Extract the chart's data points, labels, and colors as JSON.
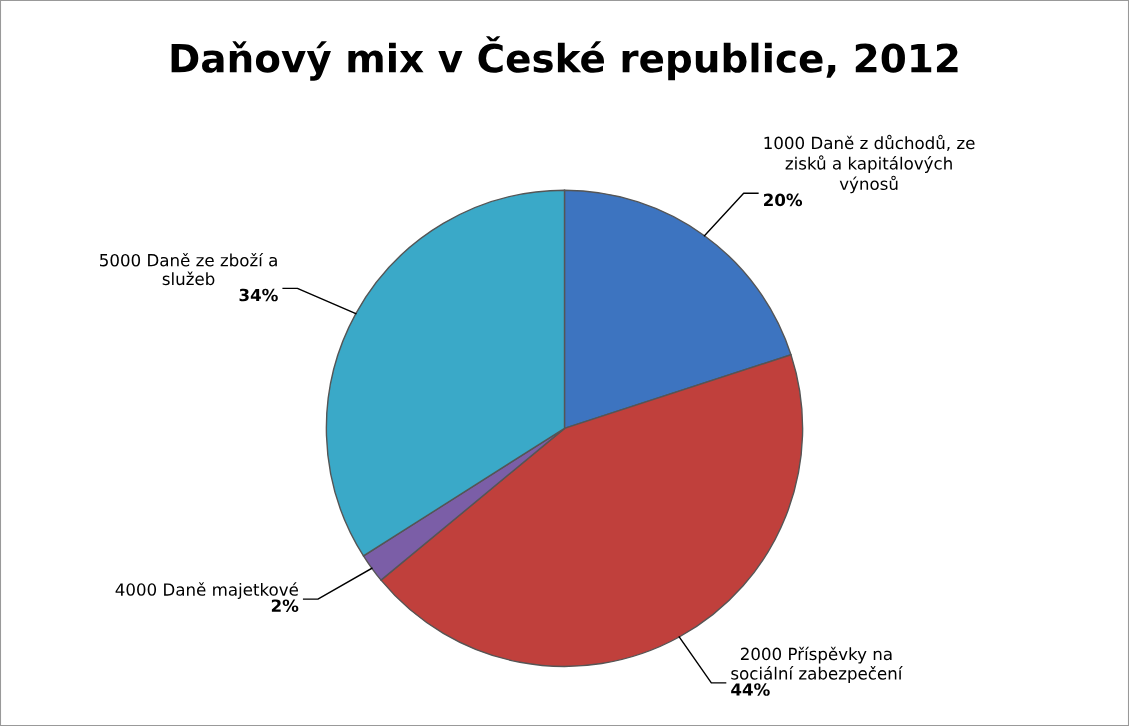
{
  "chart_data": {
    "type": "pie",
    "title": "Daňový mix v České republice, 2012",
    "categories": [
      "1000 Daně z důchodů, ze zisků a kapitálových výnosů",
      "2000 Příspěvky na sociální zabezpečení",
      "4000 Daně majetkové",
      "5000 Daně ze zboží a služeb"
    ],
    "values": [
      20,
      44,
      2,
      34
    ],
    "value_labels": [
      "20%",
      "44%",
      "2%",
      "34%"
    ],
    "colors": [
      "#3d74c0",
      "#c0403c",
      "#7b5ea7",
      "#3aa9c8"
    ],
    "legend": false
  }
}
